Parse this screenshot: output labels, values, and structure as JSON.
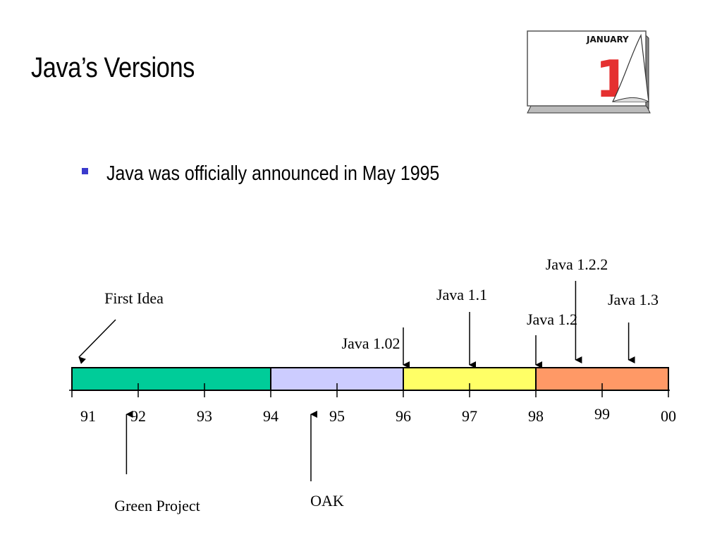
{
  "slide": {
    "title": "Java’s Versions",
    "bullet": "Java was officially announced in May 1995"
  },
  "calendar_icon": {
    "icon": "calendar-icon",
    "month": "JANUARY",
    "day": "1"
  },
  "timeline": {
    "years": [
      "91",
      "92",
      "93",
      "94",
      "95",
      "96",
      "97",
      "98",
      "99",
      "00"
    ],
    "segments": [
      {
        "from": 91,
        "to": 94,
        "color": "#00cc99"
      },
      {
        "from": 94,
        "to": 96,
        "color": "#ccccff"
      },
      {
        "from": 96,
        "to": 98,
        "color": "#ffff66"
      },
      {
        "from": 98,
        "to": 100,
        "color": "#ff9966"
      }
    ],
    "events_above": [
      {
        "label": "Java  1.02",
        "year": 96
      },
      {
        "label": "Java  1.1",
        "year": 97
      },
      {
        "label": "Java  1.2",
        "year": 98
      },
      {
        "label": "Java  1.2.2",
        "year": 98.6
      },
      {
        "label": "Java  1.3",
        "year": 99.4
      }
    ],
    "first_idea": {
      "label": "First Idea",
      "year": 91
    },
    "events_below": [
      {
        "label": "Green Project",
        "year": 91.6
      },
      {
        "label": "OAK",
        "year": 94.5
      }
    ]
  }
}
